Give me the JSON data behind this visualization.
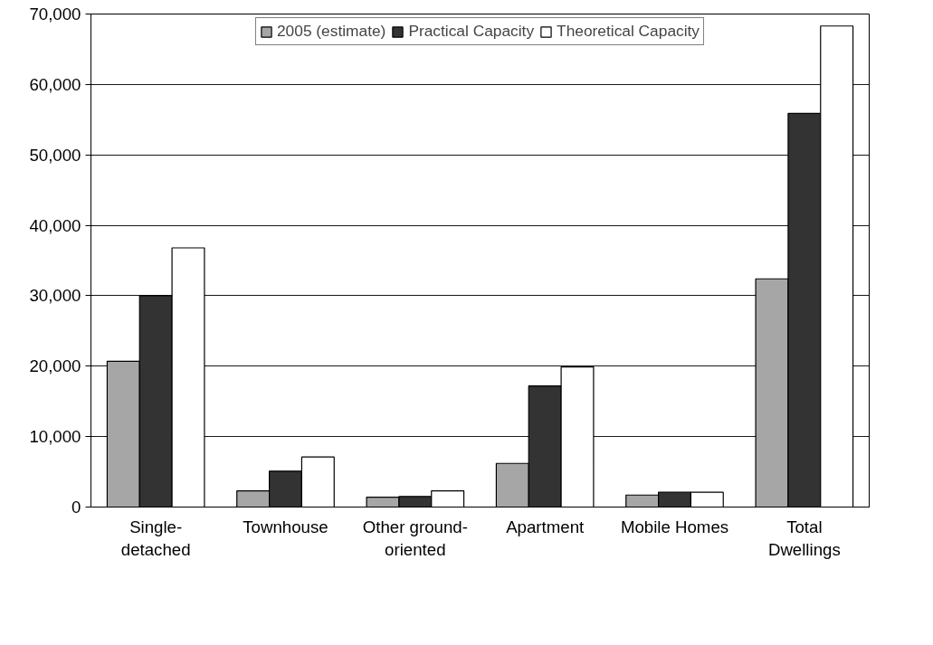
{
  "chart_data": {
    "type": "bar",
    "categories": [
      "Single-\ndetached",
      "Townhouse",
      "Other ground-\noriented",
      "Apartment",
      "Mobile Homes",
      "Total\nDwellings"
    ],
    "series": [
      {
        "name": "2005 (estimate)",
        "color": "#a6a6a6",
        "values": [
          20700,
          2300,
          1400,
          6200,
          1700,
          32400
        ]
      },
      {
        "name": "Practical Capacity",
        "color": "#333333",
        "values": [
          30000,
          5100,
          1500,
          17200,
          2100,
          55900
        ]
      },
      {
        "name": "Theoretical Capacity",
        "color": "#ffffff",
        "values": [
          36800,
          7100,
          2300,
          19900,
          2100,
          68300
        ]
      }
    ],
    "ylim": [
      0,
      70000
    ],
    "yticks": [
      {
        "value": 0,
        "label": "0"
      },
      {
        "value": 10000,
        "label": "10,000"
      },
      {
        "value": 20000,
        "label": "20,000"
      },
      {
        "value": 30000,
        "label": "30,000"
      },
      {
        "value": 40000,
        "label": "40,000"
      },
      {
        "value": 50000,
        "label": "50,000"
      },
      {
        "value": 60000,
        "label": "60,000"
      },
      {
        "value": 70000,
        "label": "70,000"
      }
    ],
    "grid": "y",
    "legend": "top"
  }
}
